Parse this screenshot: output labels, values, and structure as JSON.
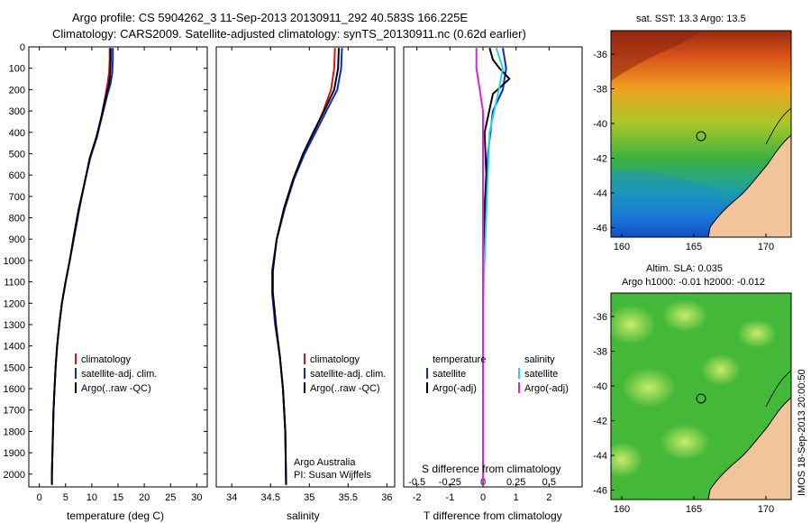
{
  "header": {
    "line1": "Argo profile: CS 5904262_3 11-Sep-2013 20130911_292 40.583S 166.225E",
    "line2": "Climatology: CARS2009. Satellite-adjusted climatology: synTS_20130911.nc (0.62d earlier)"
  },
  "colors": {
    "climatology": "#e01010",
    "satellite": "#0a2ad0",
    "argo": "#000000",
    "sal_satellite": "#22d8e0",
    "sal_argo": "#e020e0"
  },
  "chart_data": [
    {
      "type": "line",
      "id": "temperature",
      "xlabel": "temperature (deg C)",
      "ylabel": "",
      "xlim": [
        -2,
        32
      ],
      "ylim": [
        2060,
        0
      ],
      "x_ticks": [
        0,
        5,
        10,
        15,
        20,
        25,
        30
      ],
      "y_ticks": [
        0,
        100,
        200,
        300,
        400,
        500,
        600,
        700,
        800,
        900,
        1000,
        1100,
        1200,
        1300,
        1400,
        1500,
        1600,
        1700,
        1800,
        1900,
        2000
      ],
      "legend": [
        "climatology",
        "satellite-adj. clim.",
        "Argo(..raw -QC)"
      ],
      "series": [
        {
          "name": "climatology",
          "color": "#e01010",
          "points": [
            [
              13.4,
              5
            ],
            [
              13.4,
              60
            ],
            [
              13.3,
              120
            ],
            [
              13.0,
              170
            ],
            [
              12.6,
              230
            ],
            [
              11.9,
              320
            ],
            [
              11.0,
              420
            ],
            [
              9.7,
              520
            ],
            [
              8.6,
              640
            ],
            [
              7.6,
              760
            ],
            [
              6.7,
              880
            ],
            [
              5.8,
              1000
            ],
            [
              5.0,
              1100
            ],
            [
              4.3,
              1200
            ],
            [
              3.8,
              1300
            ],
            [
              3.4,
              1400
            ],
            [
              3.1,
              1500
            ],
            [
              2.9,
              1600
            ],
            [
              2.7,
              1700
            ],
            [
              2.6,
              1800
            ],
            [
              2.5,
              1900
            ],
            [
              2.4,
              2000
            ],
            [
              2.4,
              2050
            ]
          ]
        },
        {
          "name": "satellite-adj. clim.",
          "color": "#0a2ad0",
          "points": [
            [
              14.0,
              5
            ],
            [
              14.0,
              60
            ],
            [
              13.9,
              120
            ],
            [
              13.6,
              170
            ],
            [
              12.9,
              230
            ],
            [
              12.0,
              320
            ],
            [
              11.0,
              420
            ],
            [
              9.7,
              520
            ],
            [
              8.6,
              640
            ],
            [
              7.6,
              760
            ],
            [
              6.7,
              880
            ],
            [
              5.8,
              1000
            ],
            [
              5.0,
              1100
            ],
            [
              4.3,
              1200
            ],
            [
              3.8,
              1300
            ],
            [
              3.4,
              1400
            ],
            [
              3.1,
              1500
            ],
            [
              2.9,
              1600
            ],
            [
              2.7,
              1700
            ],
            [
              2.6,
              1800
            ],
            [
              2.5,
              1900
            ],
            [
              2.4,
              2000
            ],
            [
              2.4,
              2050
            ]
          ]
        },
        {
          "name": "Argo(..raw -QC)",
          "color": "#000000",
          "points": [
            [
              13.6,
              5
            ],
            [
              13.6,
              60
            ],
            [
              13.5,
              120
            ],
            [
              13.3,
              170
            ],
            [
              12.7,
              230
            ],
            [
              11.9,
              320
            ],
            [
              10.9,
              420
            ],
            [
              9.6,
              520
            ],
            [
              8.6,
              640
            ],
            [
              7.5,
              760
            ],
            [
              6.6,
              880
            ],
            [
              5.8,
              1000
            ],
            [
              5.0,
              1100
            ],
            [
              4.3,
              1200
            ],
            [
              3.8,
              1300
            ],
            [
              3.4,
              1400
            ],
            [
              3.1,
              1500
            ],
            [
              2.9,
              1600
            ],
            [
              2.7,
              1700
            ],
            [
              2.6,
              1800
            ],
            [
              2.5,
              1900
            ],
            [
              2.4,
              2000
            ],
            [
              2.4,
              2050
            ]
          ]
        }
      ]
    },
    {
      "type": "line",
      "id": "salinity",
      "xlabel": "salinity",
      "ylabel": "",
      "xlim": [
        33.8,
        36.1
      ],
      "ylim": [
        2060,
        0
      ],
      "x_ticks": [
        34,
        34.5,
        35,
        35.5,
        36
      ],
      "x_tick_labels": [
        "34",
        "34.5",
        "35",
        "35.5",
        "36"
      ],
      "legend": [
        "climatology",
        "satellite-adj. clim.",
        "Argo(..raw -QC)"
      ],
      "annotation": [
        "Argo Australia",
        "PI: Susan Wijffels"
      ],
      "series": [
        {
          "name": "climatology",
          "color": "#e01010",
          "points": [
            [
              35.33,
              5
            ],
            [
              35.32,
              100
            ],
            [
              35.28,
              200
            ],
            [
              35.18,
              300
            ],
            [
              35.06,
              400
            ],
            [
              34.93,
              500
            ],
            [
              34.8,
              620
            ],
            [
              34.68,
              760
            ],
            [
              34.58,
              900
            ],
            [
              34.52,
              1050
            ],
            [
              34.52,
              1150
            ],
            [
              34.56,
              1300
            ],
            [
              34.62,
              1450
            ],
            [
              34.66,
              1600
            ],
            [
              34.69,
              1800
            ],
            [
              34.7,
              2050
            ]
          ]
        },
        {
          "name": "satellite-adj. clim.",
          "color": "#0a2ad0",
          "points": [
            [
              35.42,
              5
            ],
            [
              35.41,
              100
            ],
            [
              35.36,
              200
            ],
            [
              35.22,
              300
            ],
            [
              35.08,
              400
            ],
            [
              34.94,
              500
            ],
            [
              34.8,
              620
            ],
            [
              34.68,
              760
            ],
            [
              34.58,
              900
            ],
            [
              34.52,
              1050
            ],
            [
              34.52,
              1150
            ],
            [
              34.56,
              1300
            ],
            [
              34.62,
              1450
            ],
            [
              34.66,
              1600
            ],
            [
              34.69,
              1800
            ],
            [
              34.7,
              2050
            ]
          ]
        },
        {
          "name": "Argo(..raw -QC)",
          "color": "#000000",
          "points": [
            [
              35.38,
              5
            ],
            [
              35.37,
              100
            ],
            [
              35.32,
              200
            ],
            [
              35.19,
              300
            ],
            [
              35.05,
              400
            ],
            [
              34.92,
              500
            ],
            [
              34.79,
              620
            ],
            [
              34.67,
              760
            ],
            [
              34.58,
              900
            ],
            [
              34.53,
              1050
            ],
            [
              34.53,
              1150
            ],
            [
              34.57,
              1300
            ],
            [
              34.62,
              1450
            ],
            [
              34.66,
              1600
            ],
            [
              34.69,
              1800
            ],
            [
              34.7,
              2050
            ]
          ]
        }
      ]
    },
    {
      "type": "line",
      "id": "difference",
      "xlabel": "T difference from climatology",
      "top_label": "S difference from climatology",
      "xlim": [
        -2.4,
        3.0
      ],
      "ylim": [
        2060,
        0
      ],
      "x_ticks": [
        -2,
        -1,
        0,
        1,
        2
      ],
      "top_ticks": [
        -0.5,
        -0.25,
        0,
        0.25,
        0.5
      ],
      "top_tick_labels": [
        "-0.5",
        "-0.25",
        "0",
        "0.25",
        "0.5"
      ],
      "legend_temperature": {
        "title": "temperature",
        "items": [
          "satellite",
          "Argo(-adj)"
        ]
      },
      "legend_salinity": {
        "title": "salinity",
        "items": [
          "satellite",
          "Argo(-adj)"
        ]
      },
      "series": [
        {
          "name": "satellite",
          "kind": "temperature",
          "color": "#0a2ad0",
          "points": [
            [
              0.6,
              5
            ],
            [
              0.7,
              100
            ],
            [
              0.6,
              200
            ],
            [
              0.3,
              300
            ],
            [
              0.15,
              500
            ],
            [
              0.05,
              800
            ],
            [
              0.0,
              1200
            ],
            [
              0.0,
              2050
            ]
          ]
        },
        {
          "name": "Argo(-adj)",
          "kind": "temperature",
          "color": "#000000",
          "points": [
            [
              0.2,
              5
            ],
            [
              0.3,
              60
            ],
            [
              0.5,
              100
            ],
            [
              0.8,
              150
            ],
            [
              0.3,
              220
            ],
            [
              0.05,
              400
            ],
            [
              0.1,
              600
            ],
            [
              0.05,
              750
            ],
            [
              0.0,
              1000
            ],
            [
              0.0,
              2050
            ]
          ]
        },
        {
          "name": "satellite",
          "kind": "salinity",
          "color": "#22d8e0",
          "points": [
            [
              0.1,
              5
            ],
            [
              0.15,
              100
            ],
            [
              0.12,
              200
            ],
            [
              0.05,
              400
            ],
            [
              0.03,
              700
            ],
            [
              0.0,
              1200
            ],
            [
              0.0,
              2050
            ]
          ]
        },
        {
          "name": "Argo(-adj)",
          "kind": "salinity",
          "color": "#e020e0",
          "points": [
            [
              -0.05,
              5
            ],
            [
              -0.05,
              100
            ],
            [
              0.0,
              300
            ],
            [
              0.0,
              600
            ],
            [
              0.0,
              1000
            ],
            [
              0.0,
              2050
            ]
          ]
        }
      ]
    }
  ],
  "maps": {
    "sst": {
      "title": "sat. SST: 13.3 Argo: 13.5",
      "lon_ticks": [
        "160",
        "165",
        "170"
      ],
      "lat_ticks": [
        "-36",
        "-38",
        "-40",
        "-42",
        "-44",
        "-46"
      ]
    },
    "sla": {
      "title_line1": "Altim. SLA: 0.035",
      "title_line2": "Argo h1000: -0.01 h2000: -0.012",
      "lon_ticks": [
        "160",
        "165",
        "170"
      ],
      "lat_ticks": [
        "-36",
        "-38",
        "-40",
        "-42",
        "-44",
        "-46"
      ]
    }
  },
  "footer": {
    "imos_stamp": "IMOS 18-Sep-2013 20:00:50"
  }
}
